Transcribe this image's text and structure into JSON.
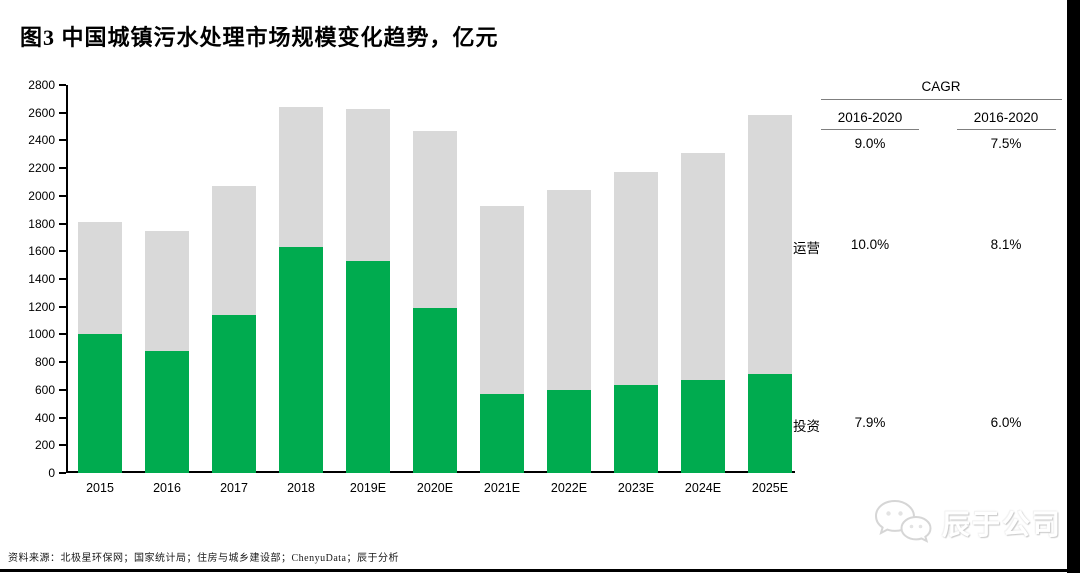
{
  "title": "图3 中国城镇污水处理市场规模变化趋势，亿元",
  "chart_data": {
    "type": "bar",
    "stacked": true,
    "title": "中国城镇污水处理市场规模变化趋势",
    "unit": "亿元",
    "categories": [
      "2015",
      "2016",
      "2017",
      "2018",
      "2019E",
      "2020E",
      "2021E",
      "2022E",
      "2023E",
      "2024E",
      "2025E"
    ],
    "series": [
      {
        "name": "投资",
        "color": "#00AB4F",
        "values": [
          1000,
          880,
          1140,
          1630,
          1530,
          1190,
          570,
          600,
          635,
          670,
          715
        ]
      },
      {
        "name": "运营",
        "color": "#D9D9D9",
        "values": [
          810,
          870,
          930,
          1010,
          1100,
          1280,
          1360,
          1440,
          1535,
          1640,
          1865
        ]
      }
    ],
    "totals": [
      1810,
      1750,
      2070,
      2640,
      2630,
      2470,
      1930,
      2040,
      2170,
      2310,
      2580
    ],
    "ylim": [
      0,
      2800
    ],
    "ytick_step": 200,
    "grid": false,
    "legend_position": "right row labels (运营 aligned to gray segment, 投资 aligned to green segment)"
  },
  "cagr_table": {
    "header": "CAGR",
    "col_headers": [
      "2016-2020",
      "2016-2020"
    ],
    "total_row": {
      "values": [
        "9.0%",
        "7.5%"
      ]
    },
    "rows": [
      {
        "label": "运营",
        "values": [
          "10.0%",
          "8.1%"
        ]
      },
      {
        "label": "投资",
        "values": [
          "7.9%",
          "6.0%"
        ]
      }
    ]
  },
  "footer": {
    "source": "资料来源：北极星环保网；国家统计局；住房与城乡建设部；ChenyuData；辰于分析"
  },
  "watermark": {
    "text": "辰于公司",
    "icon": "wechat-chat-bubbles-icon"
  },
  "colors": {
    "invest_green": "#00AB4F",
    "operation_gray": "#D9D9D9",
    "axis_black": "#000000",
    "table_line_gray": "#7F7F7F",
    "frame_black": "#000000"
  }
}
